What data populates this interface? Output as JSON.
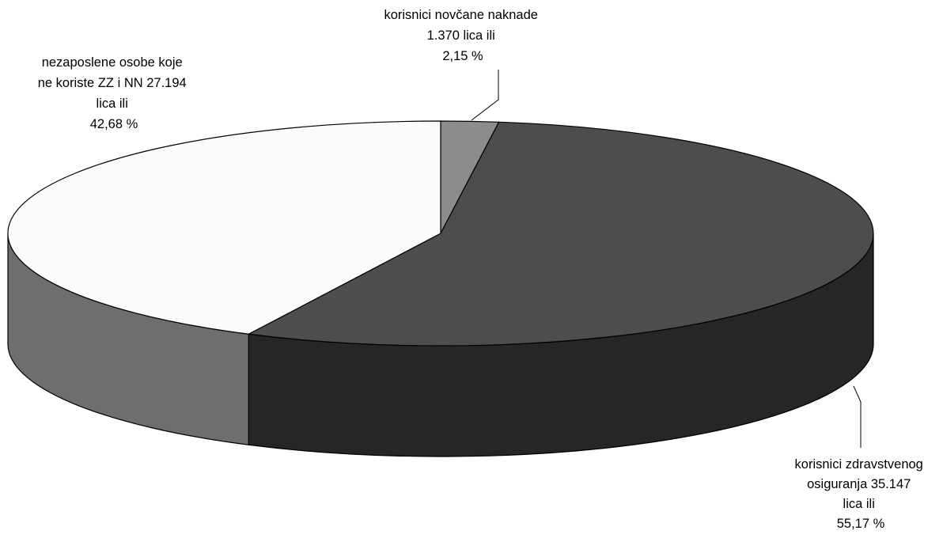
{
  "chart_data": {
    "type": "pie",
    "style": "3d",
    "title": "",
    "categories": [
      "korisnici novčane naknade",
      "korisnici zdravstvenog osiguranja",
      "nezaposlene osobe koje ne koriste ZZ i NN"
    ],
    "values": [
      1370,
      35147,
      27194
    ],
    "percent": [
      2.15,
      55.17,
      42.68
    ],
    "colors": [
      "#8c8c8c",
      "#4d4d4d",
      "#fbfbfb"
    ],
    "side_colors": [
      "#6a6a6a",
      "#262626",
      "#6e6e6e"
    ],
    "labels": [
      {
        "lines": [
          "korisnici novčane naknade",
          "1.370 lica ili",
          "2,15 %"
        ]
      },
      {
        "lines": [
          "korisnici zdravstvenog",
          "osiguranja 35.147",
          "lica ili",
          "55,17 %"
        ]
      },
      {
        "lines": [
          "nezaposlene osobe koje",
          "ne koriste ZZ i NN 27.194",
          "lica ili",
          "42,68 %"
        ]
      }
    ],
    "legend": "none"
  }
}
